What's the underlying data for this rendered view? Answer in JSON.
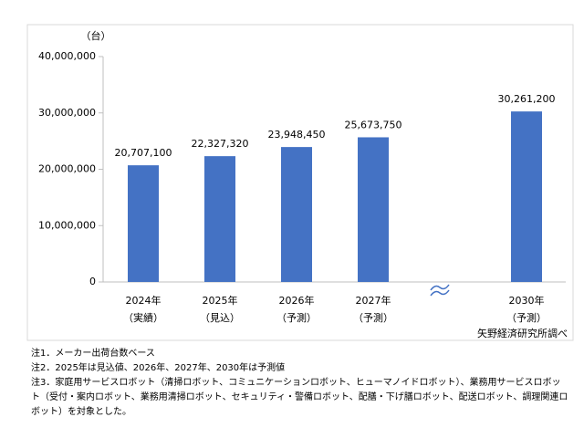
{
  "chart_data": {
    "type": "bar",
    "y_unit": "（台）",
    "categories": [
      "2024年",
      "2025年",
      "2026年",
      "2027年",
      "2030年"
    ],
    "category_notes": [
      "（実績）",
      "（見込）",
      "（予測）",
      "（予測）",
      "（予測）"
    ],
    "values": [
      20707100,
      22327320,
      23948450,
      25673750,
      30261200
    ],
    "value_labels": [
      "20,707,100",
      "22,327,320",
      "23,948,450",
      "25,673,750",
      "30,261,200"
    ],
    "color": "#4472c4",
    "ylim": [
      0,
      40000000
    ],
    "yticks": [
      0,
      {
        "value": 10000000,
        "label": "10,000,000"
      },
      {
        "value": 20000000,
        "label": "20,000,000"
      },
      {
        "value": 30000000,
        "label": "30,000,000"
      },
      {
        "value": 40000000,
        "label": "40,000,000"
      }
    ],
    "grid": false,
    "source": "矢野経済研究所調べ",
    "notes": [
      "注1．メーカー出荷台数ベース",
      "注2．2025年は見込値、2026年、2027年、2030年は予測値",
      "注3．家庭用サービスロボット（清掃ロボット、コミュニケーションロボット、ヒューマノイドロボット）、業務用サービスロボット（受付・案内ロボット、業務用清掃ロボット、セキュリティ・警備ロボット、配膳・下げ膳ロボット、配送ロボット、調理関連ロボット）を対象とした。"
    ]
  }
}
